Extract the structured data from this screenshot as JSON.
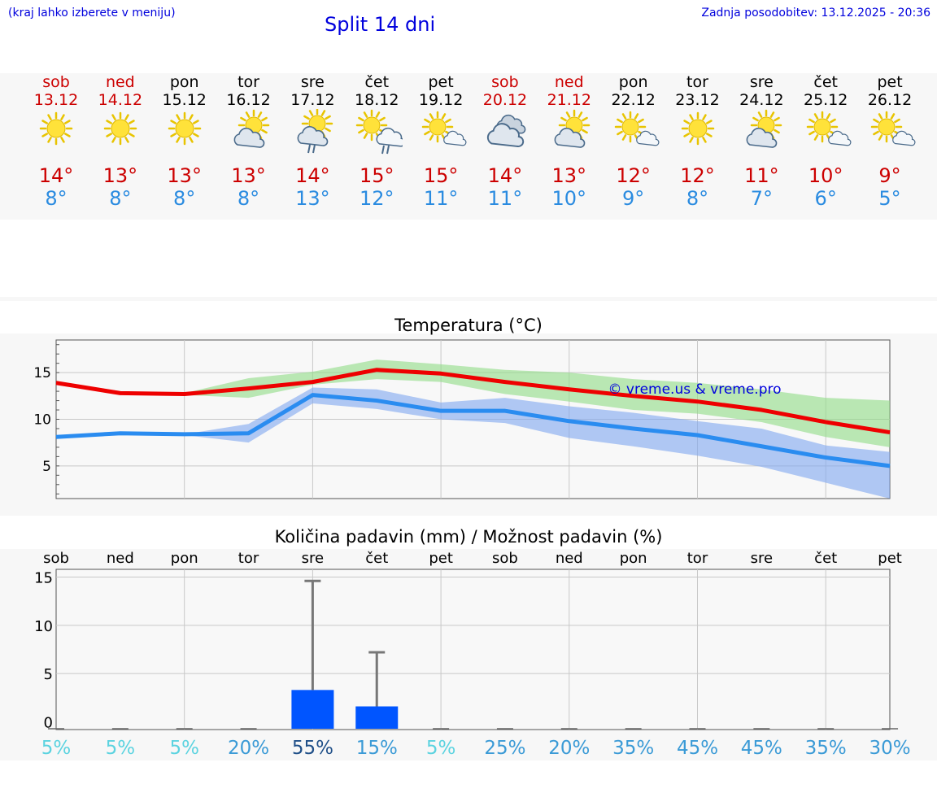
{
  "header": {
    "location_hint": "(kraj lahko izberete v meniju)",
    "title": "Split 14 dni",
    "updated": "Zadnja posodobitev: 13.12.2025 - 20:36"
  },
  "days": [
    {
      "name": "sob",
      "date": "13.12",
      "weekend": true,
      "icon": "sun-icon",
      "hi": "14°",
      "lo": "8°"
    },
    {
      "name": "ned",
      "date": "14.12",
      "weekend": true,
      "icon": "sun-icon",
      "hi": "13°",
      "lo": "8°"
    },
    {
      "name": "pon",
      "date": "15.12",
      "weekend": false,
      "icon": "sun-icon",
      "hi": "13°",
      "lo": "8°"
    },
    {
      "name": "tor",
      "date": "16.12",
      "weekend": false,
      "icon": "cloud-sun-icon",
      "hi": "13°",
      "lo": "8°"
    },
    {
      "name": "sre",
      "date": "17.12",
      "weekend": false,
      "icon": "cloud-sun-rain-icon",
      "hi": "14°",
      "lo": "13°"
    },
    {
      "name": "čet",
      "date": "18.12",
      "weekend": false,
      "icon": "sun-cloud-rain-icon",
      "hi": "15°",
      "lo": "12°"
    },
    {
      "name": "pet",
      "date": "19.12",
      "weekend": false,
      "icon": "sun-small-cloud-icon",
      "hi": "15°",
      "lo": "11°"
    },
    {
      "name": "sob",
      "date": "20.12",
      "weekend": true,
      "icon": "cloudy-icon",
      "hi": "14°",
      "lo": "11°"
    },
    {
      "name": "ned",
      "date": "21.12",
      "weekend": true,
      "icon": "cloud-sun-icon",
      "hi": "13°",
      "lo": "10°"
    },
    {
      "name": "pon",
      "date": "22.12",
      "weekend": false,
      "icon": "sun-small-cloud-icon",
      "hi": "12°",
      "lo": "9°"
    },
    {
      "name": "tor",
      "date": "23.12",
      "weekend": false,
      "icon": "sun-icon",
      "hi": "12°",
      "lo": "8°"
    },
    {
      "name": "sre",
      "date": "24.12",
      "weekend": false,
      "icon": "cloud-sun-icon",
      "hi": "11°",
      "lo": "7°"
    },
    {
      "name": "čet",
      "date": "25.12",
      "weekend": false,
      "icon": "sun-small-cloud-icon",
      "hi": "10°",
      "lo": "6°"
    },
    {
      "name": "pet",
      "date": "26.12",
      "weekend": false,
      "icon": "sun-small-cloud-icon",
      "hi": "9°",
      "lo": "5°"
    }
  ],
  "colors": {
    "hi": "#cc0000",
    "lo": "#2a8be0",
    "max_line": "#ee0000",
    "min_line": "#2a8cf0",
    "max_band": "#8fdc86",
    "min_band": "#7fa6f0",
    "bar": "#0055ff",
    "title": "#0000dd"
  },
  "chart_data": [
    {
      "type": "line",
      "title": "Temperatura (°C)",
      "watermark": "© vreme.us & vreme.pro",
      "x": [
        0,
        1,
        2,
        3,
        4,
        5,
        6,
        7,
        8,
        9,
        10,
        11,
        12,
        13
      ],
      "ylim": [
        1.5,
        18.5
      ],
      "yticks": [
        5,
        10,
        15
      ],
      "series": [
        {
          "name": "max",
          "values": [
            13.9,
            12.8,
            12.7,
            13.3,
            14.0,
            15.3,
            14.9,
            14.0,
            13.2,
            12.5,
            11.9,
            11.0,
            9.7,
            8.6
          ]
        },
        {
          "name": "min",
          "values": [
            8.1,
            8.5,
            8.4,
            8.5,
            12.6,
            12.0,
            10.9,
            10.9,
            9.8,
            9.0,
            8.3,
            7.1,
            5.9,
            5.0
          ]
        }
      ],
      "max_band": {
        "low": [
          null,
          null,
          12.6,
          12.3,
          13.7,
          14.3,
          14.0,
          12.7,
          11.9,
          11.0,
          10.6,
          9.7,
          8.1,
          7.0
        ],
        "high": [
          null,
          null,
          12.8,
          14.4,
          15.1,
          16.4,
          15.9,
          15.3,
          15.0,
          14.3,
          13.9,
          13.2,
          12.3,
          12.0
        ]
      },
      "min_band": {
        "low": [
          null,
          null,
          8.3,
          7.5,
          11.7,
          11.1,
          10.0,
          9.6,
          8.0,
          7.1,
          6.1,
          4.9,
          3.2,
          1.5
        ],
        "high": [
          null,
          null,
          8.4,
          9.5,
          13.4,
          13.2,
          11.8,
          12.3,
          11.4,
          10.7,
          9.8,
          9.0,
          7.2,
          6.5
        ]
      }
    },
    {
      "type": "bar",
      "title": "Količina padavin (mm) / Možnost padavin (%)",
      "categories": [
        "sob",
        "ned",
        "pon",
        "tor",
        "sre",
        "čet",
        "pet",
        "sob",
        "ned",
        "pon",
        "tor",
        "sre",
        "čet",
        "pet"
      ],
      "values": [
        0,
        0,
        0,
        0,
        3.3,
        1.6,
        0,
        0,
        0,
        0,
        0,
        0,
        0,
        0
      ],
      "error_high": [
        null,
        null,
        null,
        null,
        14.6,
        7.2,
        null,
        null,
        null,
        null,
        null,
        null,
        null,
        null
      ],
      "ylim": [
        -0.8,
        15.8
      ],
      "yticks": [
        0,
        5,
        10,
        15
      ],
      "chance": [
        "5%",
        "5%",
        "5%",
        "20%",
        "55%",
        "15%",
        "5%",
        "25%",
        "20%",
        "35%",
        "45%",
        "45%",
        "35%",
        "30%"
      ],
      "chance_values": [
        5,
        5,
        5,
        20,
        55,
        15,
        5,
        25,
        20,
        35,
        45,
        45,
        35,
        30
      ]
    }
  ]
}
